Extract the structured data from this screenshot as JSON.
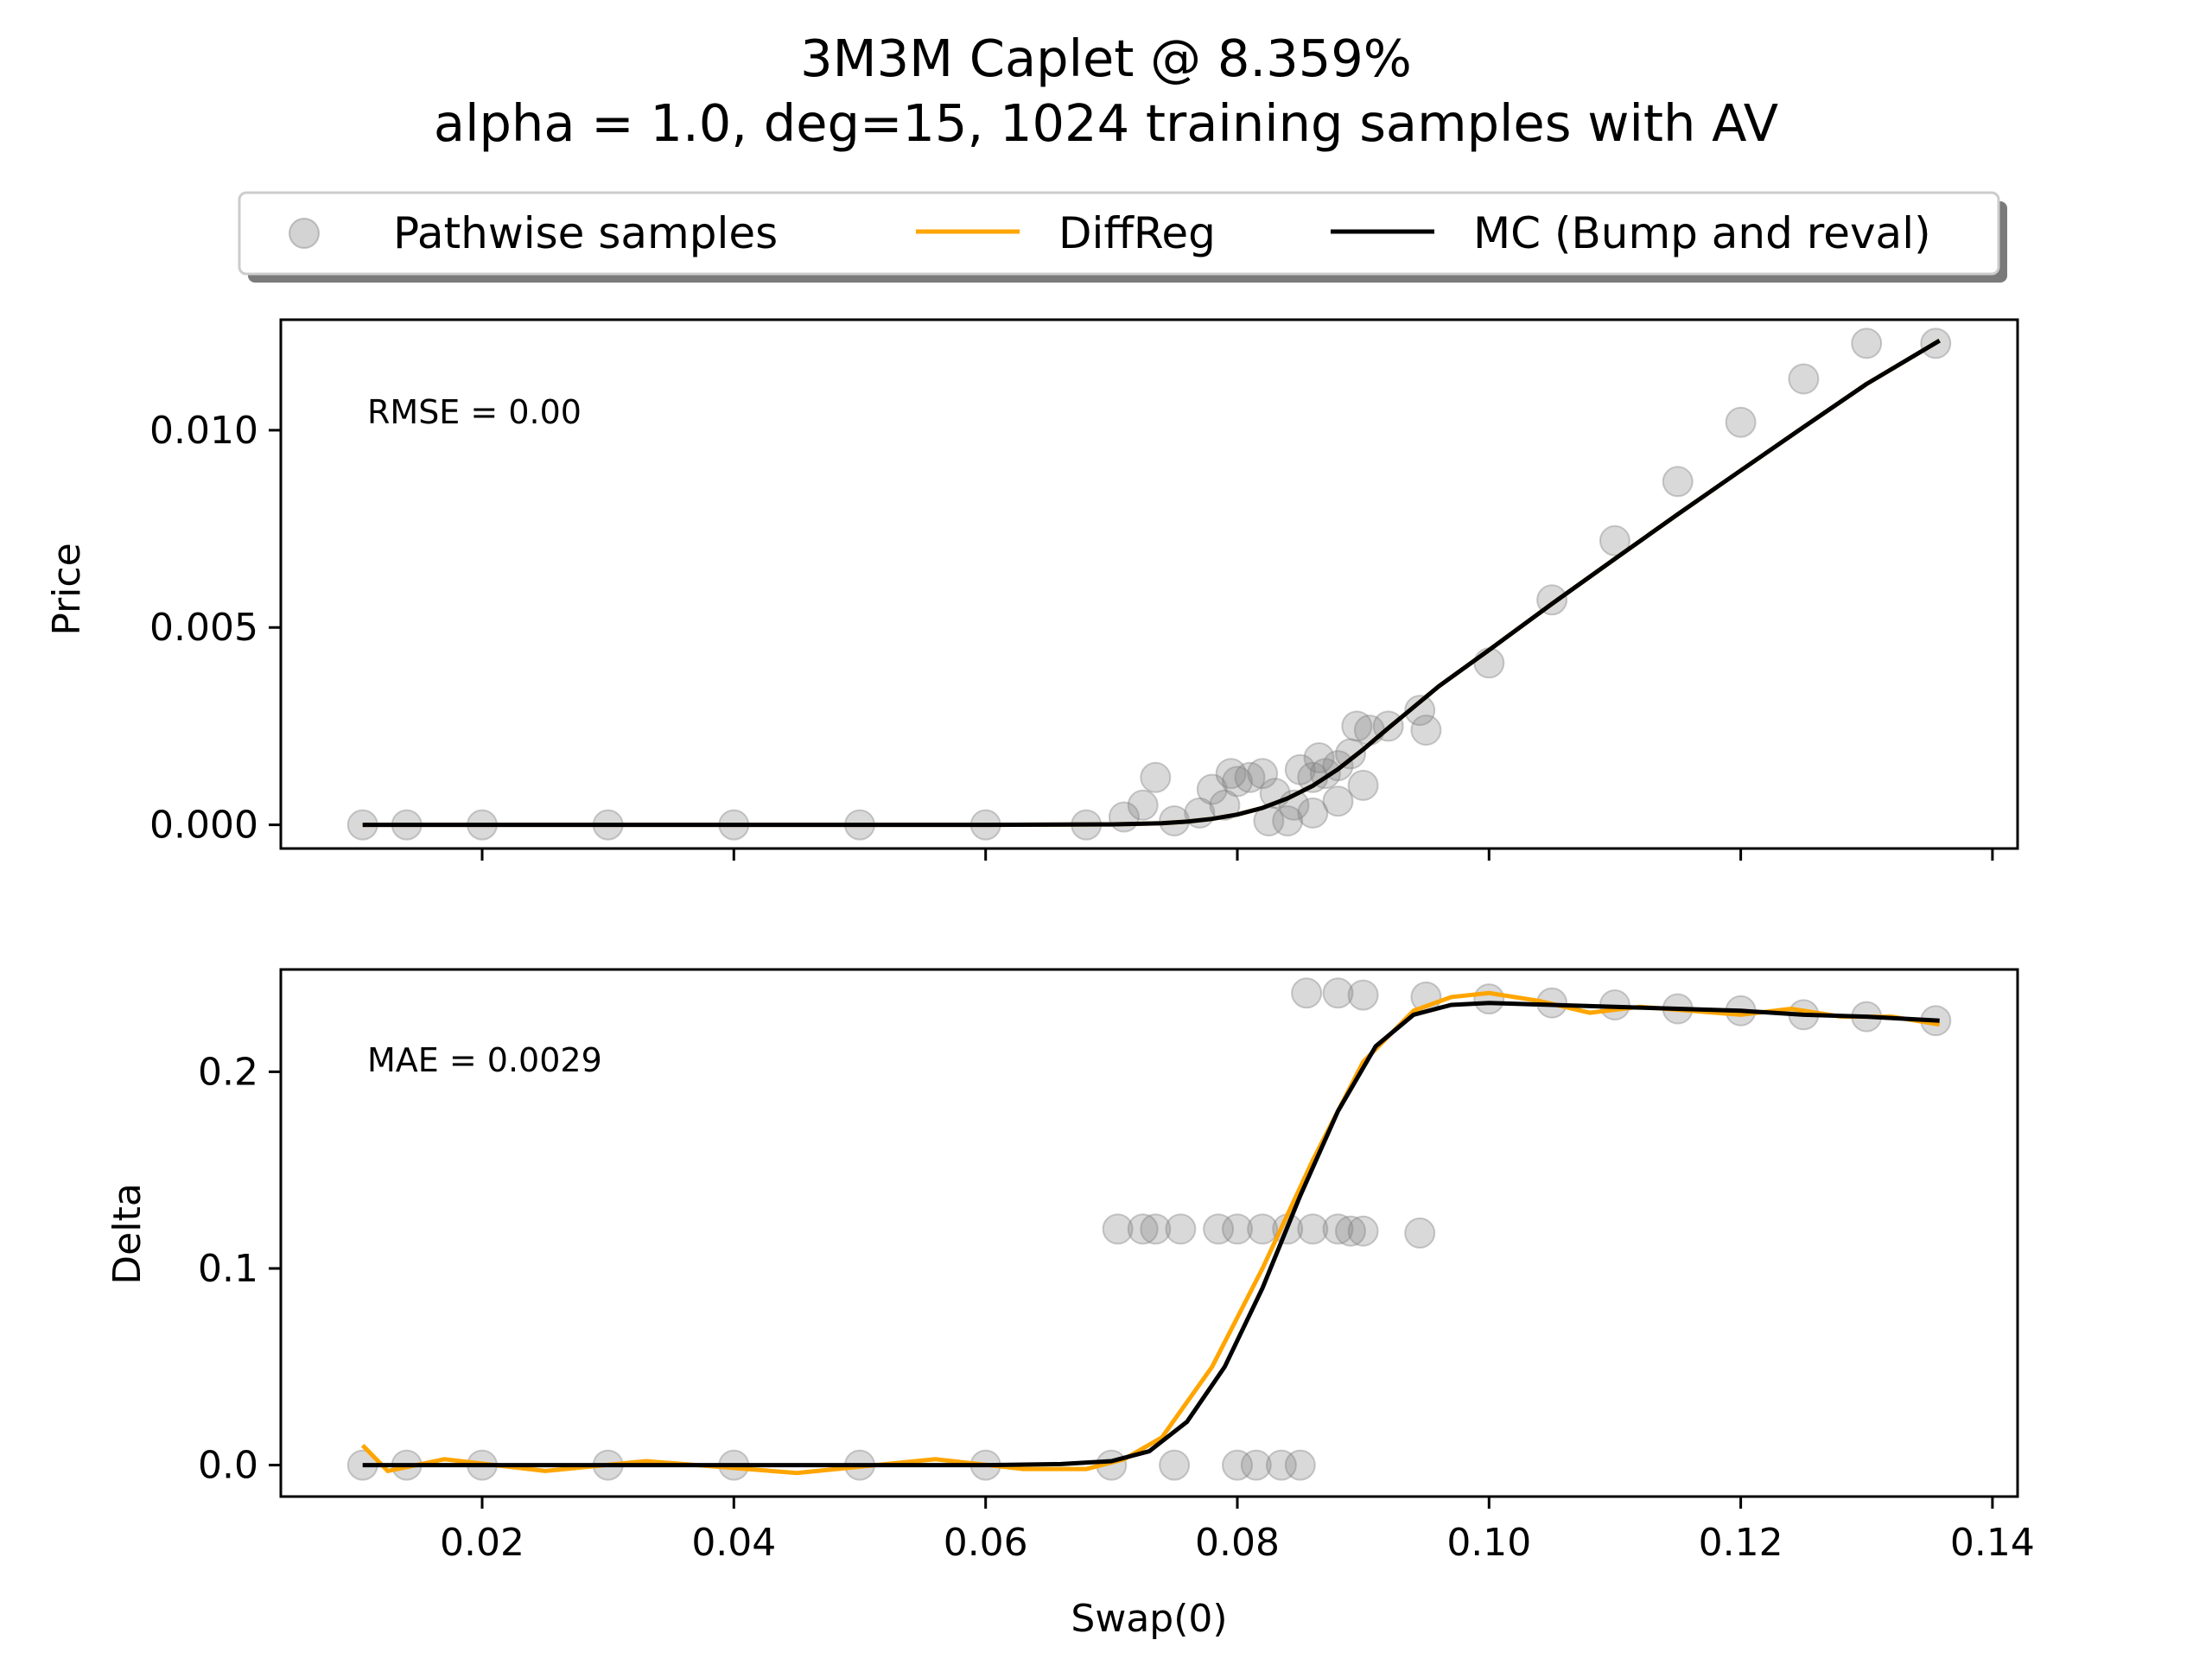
{
  "title": "3M3M Caplet @ 8.359%",
  "subtitle": "alpha = 1.0, deg=15, 1024 training samples with AV",
  "legend": {
    "placement": "top-center",
    "entries": [
      {
        "label": "Pathwise samples",
        "marker": "circle",
        "color": "#808080"
      },
      {
        "label": "DiffReg",
        "marker": "line",
        "color": "#ffa500"
      },
      {
        "label": "MC (Bump and reval)",
        "marker": "line",
        "color": "#000000"
      }
    ]
  },
  "colors": {
    "samples": "#808080",
    "diffreg": "#ffa500",
    "mc": "#000000"
  },
  "chart_data": [
    {
      "type": "scatter",
      "panel": "top",
      "xlabel": "",
      "ylabel": "Price",
      "xlim": [
        0.004,
        0.142
      ],
      "ylim": [
        -0.0006,
        0.0128
      ],
      "xticks": [
        0.02,
        0.04,
        0.06,
        0.08,
        0.1,
        0.12,
        0.14
      ],
      "xtick_labels_visible": false,
      "yticks": [
        0.0,
        0.005,
        0.01
      ],
      "ytick_labels": [
        "0.000",
        "0.005",
        "0.010"
      ],
      "annotation": "RMSE = 0.00",
      "grid": false,
      "samples": [
        [
          0.0105,
          0.0
        ],
        [
          0.014,
          0.0
        ],
        [
          0.02,
          0.0
        ],
        [
          0.03,
          0.0
        ],
        [
          0.04,
          0.0
        ],
        [
          0.05,
          0.0
        ],
        [
          0.06,
          0.0
        ],
        [
          0.068,
          0.0
        ],
        [
          0.0735,
          0.0012
        ],
        [
          0.0725,
          0.0005
        ],
        [
          0.071,
          0.0002
        ],
        [
          0.075,
          0.0001
        ],
        [
          0.077,
          0.0003
        ],
        [
          0.078,
          0.0009
        ],
        [
          0.079,
          0.0005
        ],
        [
          0.0795,
          0.0013
        ],
        [
          0.08,
          0.0011
        ],
        [
          0.081,
          0.0012
        ],
        [
          0.082,
          0.0013
        ],
        [
          0.083,
          0.0008
        ],
        [
          0.0845,
          0.0005
        ],
        [
          0.085,
          0.0014
        ],
        [
          0.086,
          0.0012
        ],
        [
          0.0865,
          0.0017
        ],
        [
          0.087,
          0.0013
        ],
        [
          0.088,
          0.0015
        ],
        [
          0.089,
          0.0018
        ],
        [
          0.0895,
          0.0025
        ],
        [
          0.0905,
          0.0024
        ],
        [
          0.092,
          0.0025
        ],
        [
          0.0945,
          0.0029
        ],
        [
          0.0825,
          0.0001
        ],
        [
          0.084,
          0.0001
        ],
        [
          0.086,
          0.0003
        ],
        [
          0.088,
          0.0006
        ],
        [
          0.09,
          0.001
        ],
        [
          0.095,
          0.0024
        ],
        [
          0.1,
          0.0041
        ],
        [
          0.105,
          0.0057
        ],
        [
          0.11,
          0.0072
        ],
        [
          0.115,
          0.0087
        ],
        [
          0.12,
          0.0102
        ],
        [
          0.125,
          0.0113
        ],
        [
          0.13,
          0.0122
        ],
        [
          0.1355,
          0.0122
        ]
      ],
      "series": [
        {
          "name": "DiffReg",
          "x": [
            0.0105,
            0.02,
            0.04,
            0.06,
            0.07,
            0.074,
            0.076,
            0.078,
            0.08,
            0.082,
            0.084,
            0.086,
            0.088,
            0.09,
            0.092,
            0.094,
            0.096,
            0.1,
            0.105,
            0.11,
            0.115,
            0.12,
            0.125,
            0.13,
            0.1358
          ],
          "y": [
            0.0,
            0.0,
            0.0,
            0.0,
            1e-05,
            4e-05,
            8e-05,
            0.00015,
            0.00026,
            0.00043,
            0.00067,
            0.00099,
            0.00141,
            0.00191,
            0.00245,
            0.00298,
            0.00351,
            0.00443,
            0.0056,
            0.00674,
            0.00787,
            0.00898,
            0.01008,
            0.01117,
            0.01227
          ]
        },
        {
          "name": "MC (Bump and reval)",
          "x": [
            0.0105,
            0.02,
            0.04,
            0.06,
            0.07,
            0.074,
            0.076,
            0.078,
            0.08,
            0.082,
            0.084,
            0.086,
            0.088,
            0.09,
            0.092,
            0.094,
            0.096,
            0.1,
            0.105,
            0.11,
            0.115,
            0.12,
            0.125,
            0.13,
            0.1358
          ],
          "y": [
            0.0,
            0.0,
            0.0,
            0.0,
            1e-05,
            4e-05,
            8e-05,
            0.00015,
            0.00026,
            0.00043,
            0.00067,
            0.00099,
            0.00141,
            0.00191,
            0.00245,
            0.00298,
            0.00351,
            0.00443,
            0.0056,
            0.00674,
            0.00787,
            0.00898,
            0.01008,
            0.01117,
            0.01227
          ]
        }
      ]
    },
    {
      "type": "scatter",
      "panel": "bottom",
      "xlabel": "Swap(0)",
      "ylabel": "Delta",
      "xlim": [
        0.004,
        0.142
      ],
      "ylim": [
        -0.016,
        0.252
      ],
      "xticks": [
        0.02,
        0.04,
        0.06,
        0.08,
        0.1,
        0.12,
        0.14
      ],
      "xtick_labels": [
        "0.02",
        "0.04",
        "0.06",
        "0.08",
        "0.10",
        "0.12",
        "0.14"
      ],
      "yticks": [
        0.0,
        0.1,
        0.2
      ],
      "ytick_labels": [
        "0.0",
        "0.1",
        "0.2"
      ],
      "annotation": "MAE = 0.0029",
      "grid": false,
      "samples": [
        [
          0.0105,
          0.0
        ],
        [
          0.014,
          0.0
        ],
        [
          0.02,
          0.0
        ],
        [
          0.03,
          0.0
        ],
        [
          0.04,
          0.0
        ],
        [
          0.05,
          0.0
        ],
        [
          0.06,
          0.0
        ],
        [
          0.07,
          0.0
        ],
        [
          0.075,
          0.0
        ],
        [
          0.08,
          0.0
        ],
        [
          0.0815,
          0.0
        ],
        [
          0.0835,
          0.0
        ],
        [
          0.085,
          0.0
        ],
        [
          0.0705,
          0.12
        ],
        [
          0.0725,
          0.12
        ],
        [
          0.0735,
          0.12
        ],
        [
          0.0755,
          0.12
        ],
        [
          0.0785,
          0.12
        ],
        [
          0.08,
          0.12
        ],
        [
          0.082,
          0.12
        ],
        [
          0.084,
          0.12
        ],
        [
          0.086,
          0.12
        ],
        [
          0.088,
          0.12
        ],
        [
          0.089,
          0.119
        ],
        [
          0.09,
          0.119
        ],
        [
          0.0945,
          0.118
        ],
        [
          0.0855,
          0.24
        ],
        [
          0.088,
          0.24
        ],
        [
          0.09,
          0.239
        ],
        [
          0.095,
          0.238
        ],
        [
          0.1,
          0.237
        ],
        [
          0.105,
          0.235
        ],
        [
          0.11,
          0.234
        ],
        [
          0.115,
          0.232
        ],
        [
          0.12,
          0.231
        ],
        [
          0.125,
          0.229
        ],
        [
          0.13,
          0.228
        ],
        [
          0.1355,
          0.226
        ]
      ],
      "series": [
        {
          "name": "DiffReg",
          "x": [
            0.0105,
            0.0125,
            0.017,
            0.025,
            0.033,
            0.045,
            0.056,
            0.063,
            0.068,
            0.071,
            0.074,
            0.078,
            0.082,
            0.086,
            0.09,
            0.094,
            0.097,
            0.1,
            0.104,
            0.108,
            0.112,
            0.116,
            0.12,
            0.124,
            0.128,
            0.132,
            0.1358
          ],
          "y": [
            0.01,
            -0.003,
            0.003,
            -0.003,
            0.002,
            -0.004,
            0.003,
            -0.002,
            -0.002,
            0.003,
            0.014,
            0.05,
            0.1,
            0.155,
            0.205,
            0.231,
            0.238,
            0.24,
            0.236,
            0.23,
            0.233,
            0.231,
            0.229,
            0.232,
            0.228,
            0.228,
            0.224
          ]
        },
        {
          "name": "MC (Bump and reval)",
          "x": [
            0.0105,
            0.02,
            0.04,
            0.06,
            0.066,
            0.07,
            0.073,
            0.076,
            0.079,
            0.082,
            0.085,
            0.088,
            0.091,
            0.094,
            0.097,
            0.1,
            0.105,
            0.11,
            0.115,
            0.12,
            0.125,
            0.13,
            0.1358
          ],
          "y": [
            0.0,
            0.0,
            0.0,
            0.0,
            0.0005,
            0.002,
            0.007,
            0.022,
            0.05,
            0.09,
            0.137,
            0.18,
            0.213,
            0.229,
            0.234,
            0.235,
            0.234,
            0.233,
            0.232,
            0.231,
            0.229,
            0.228,
            0.226
          ]
        }
      ]
    }
  ]
}
